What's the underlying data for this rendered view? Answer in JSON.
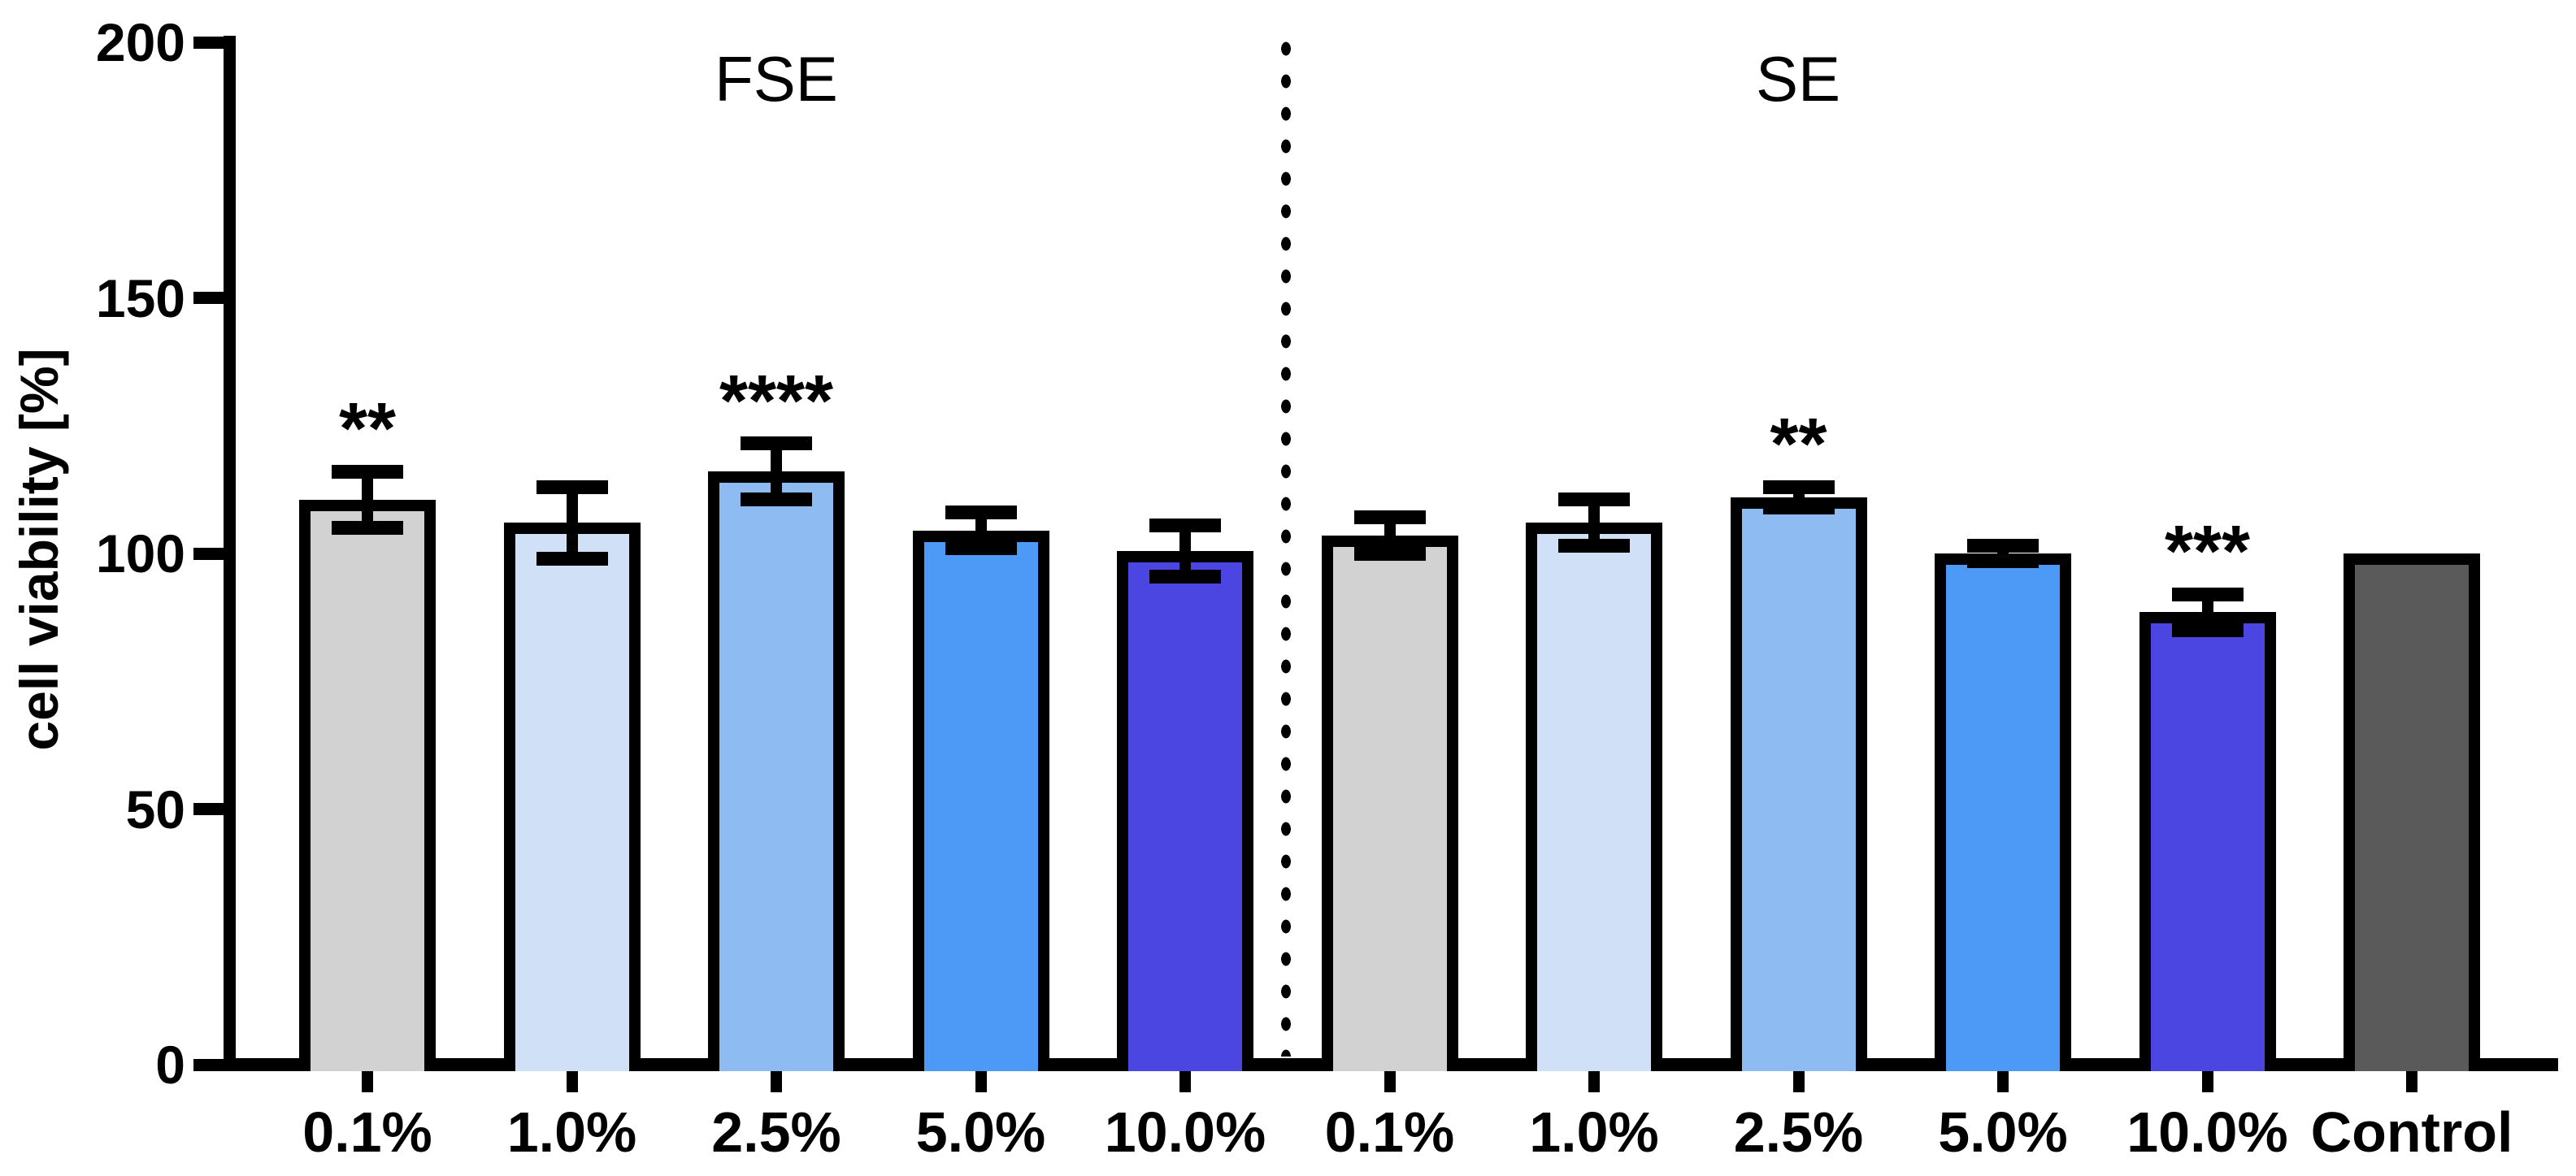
{
  "chart_data": {
    "type": "bar",
    "title": "",
    "ylabel": "cell viability [%]",
    "xlabel": "",
    "ylim": [
      0,
      200
    ],
    "yticks": [
      "0",
      "50",
      "100",
      "150",
      "200"
    ],
    "ytick_values": [
      0,
      50,
      100,
      150,
      200
    ],
    "grid": "off",
    "legend": "none",
    "group_titles": [
      {
        "text": "FSE"
      },
      {
        "text": "SE"
      }
    ],
    "separator_style": "vertical-dotted-line-between-FSE-and-SE",
    "bar_outline_color": "#000000",
    "error_bar_color": "#000000",
    "bars": [
      {
        "group": "FSE",
        "category": "0.1%",
        "value": 110.5,
        "sd": 5.5,
        "stars": "**",
        "color": "#d2d2d2"
      },
      {
        "group": "FSE",
        "category": "1.0%",
        "value": 106,
        "sd": 7,
        "stars": "",
        "color": "#d0e1f7"
      },
      {
        "group": "FSE",
        "category": "2.5%",
        "value": 116,
        "sd": 5.5,
        "stars": "****",
        "color": "#8fbbf3"
      },
      {
        "group": "FSE",
        "category": "5.0%",
        "value": 104.5,
        "sd": 3.5,
        "stars": "",
        "color": "#4d9af6"
      },
      {
        "group": "FSE",
        "category": "10.0%",
        "value": 100.5,
        "sd": 5,
        "stars": "",
        "color": "#4b45e1"
      },
      {
        "group": "SE",
        "category": "0.1%",
        "value": 103.5,
        "sd": 3.5,
        "stars": "",
        "color": "#d2d2d2"
      },
      {
        "group": "SE",
        "category": "1.0%",
        "value": 106,
        "sd": 4.5,
        "stars": "",
        "color": "#d0e1f7"
      },
      {
        "group": "SE",
        "category": "2.5%",
        "value": 111,
        "sd": 2,
        "stars": "**",
        "color": "#8fbbf3"
      },
      {
        "group": "SE",
        "category": "5.0%",
        "value": 100,
        "sd": 1.5,
        "stars": "",
        "color": "#4d9af6"
      },
      {
        "group": "SE",
        "category": "10.0%",
        "value": 88.5,
        "sd": 3.5,
        "stars": "***",
        "color": "#4b45e1"
      },
      {
        "group": "Control",
        "category": "Control",
        "value": 100,
        "sd": 0,
        "stars": "",
        "color": "#5a5a5a"
      }
    ]
  }
}
